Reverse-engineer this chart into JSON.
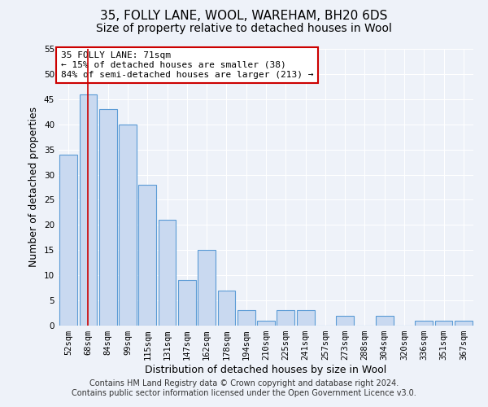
{
  "title1": "35, FOLLY LANE, WOOL, WAREHAM, BH20 6DS",
  "title2": "Size of property relative to detached houses in Wool",
  "xlabel": "Distribution of detached houses by size in Wool",
  "ylabel": "Number of detached properties",
  "categories": [
    "52sqm",
    "68sqm",
    "84sqm",
    "99sqm",
    "115sqm",
    "131sqm",
    "147sqm",
    "162sqm",
    "178sqm",
    "194sqm",
    "210sqm",
    "225sqm",
    "241sqm",
    "257sqm",
    "273sqm",
    "288sqm",
    "304sqm",
    "320sqm",
    "336sqm",
    "351sqm",
    "367sqm"
  ],
  "values": [
    34,
    46,
    43,
    40,
    28,
    21,
    9,
    15,
    7,
    3,
    1,
    3,
    3,
    0,
    2,
    0,
    2,
    0,
    1,
    1,
    1
  ],
  "bar_color": "#c9d9f0",
  "bar_edge_color": "#5b9bd5",
  "vline_x": 1,
  "vline_color": "#cc0000",
  "ylim": [
    0,
    55
  ],
  "yticks": [
    0,
    5,
    10,
    15,
    20,
    25,
    30,
    35,
    40,
    45,
    50,
    55
  ],
  "annotation_text": "35 FOLLY LANE: 71sqm\n← 15% of detached houses are smaller (38)\n84% of semi-detached houses are larger (213) →",
  "annotation_box_color": "#ffffff",
  "annotation_box_edge": "#cc0000",
  "footer1": "Contains HM Land Registry data © Crown copyright and database right 2024.",
  "footer2": "Contains public sector information licensed under the Open Government Licence v3.0.",
  "background_color": "#eef2f9",
  "plot_background": "#eef2f9",
  "grid_color": "#ffffff",
  "title1_fontsize": 11,
  "title2_fontsize": 10,
  "axis_label_fontsize": 9,
  "tick_fontsize": 7.5,
  "footer_fontsize": 7,
  "annot_fontsize": 8
}
